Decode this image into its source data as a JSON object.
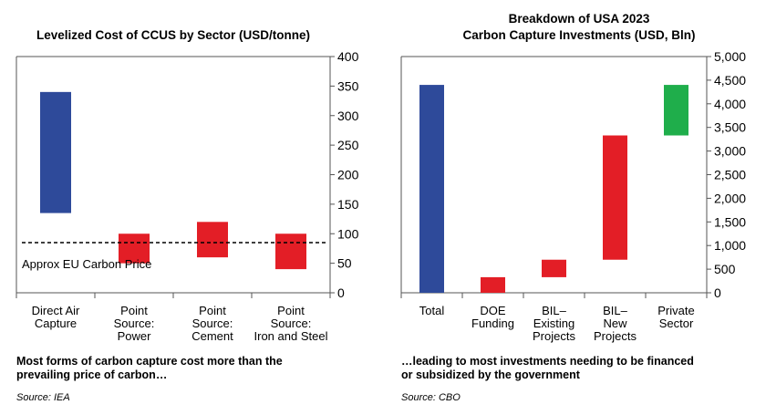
{
  "left": {
    "title": "Levelized Cost of CCUS by Sector (USD/tonne)",
    "caption_line1": "Most forms of carbon capture cost more than the",
    "caption_line2": "prevailing price of carbon…",
    "source": "Source: IEA"
  },
  "right": {
    "title_line1": "Breakdown of USA 2023",
    "title_line2": "Carbon Capture Investments (USD, Bln)",
    "caption_line1": "…leading to most investments needing to be financed",
    "caption_line2": "or subsidized by the government",
    "source": "Source: CBO"
  },
  "colors": {
    "blue": "#2e4a9a",
    "red": "#e31e26",
    "green": "#1fae4b",
    "axis": "#555555"
  },
  "chart_data": [
    {
      "type": "bar",
      "subtype": "floating-range",
      "title": "Levelized Cost of CCUS by Sector (USD/tonne)",
      "categories": [
        [
          "Direct Air",
          "Capture"
        ],
        [
          "Point",
          "Source:",
          "Power"
        ],
        [
          "Point",
          "Source:",
          "Cement"
        ],
        [
          "Point",
          "Source:",
          "Iron and Steel"
        ]
      ],
      "ranges": [
        [
          135,
          340
        ],
        [
          50,
          100
        ],
        [
          60,
          120
        ],
        [
          40,
          100
        ]
      ],
      "colors": [
        "blue",
        "red",
        "red",
        "red"
      ],
      "ylim": [
        0,
        400
      ],
      "yticks": [
        0,
        50,
        100,
        150,
        200,
        250,
        300,
        350,
        400
      ],
      "ytick_labels": [
        "0",
        "50",
        "100",
        "150",
        "200",
        "250",
        "300",
        "350",
        "400"
      ],
      "y_axis_side": "right",
      "reference_line": {
        "value": 85,
        "label": "Approx EU Carbon Price",
        "style": "dashed"
      }
    },
    {
      "type": "bar",
      "subtype": "waterfall",
      "title": "Breakdown of USA 2023 Carbon Capture Investments (USD, Bln)",
      "categories": [
        [
          "Total"
        ],
        [
          "DOE",
          "Funding"
        ],
        [
          "BIL–",
          "Existing",
          "Projects"
        ],
        [
          "BIL–",
          "New",
          "Projects"
        ],
        [
          "Private",
          "Sector"
        ]
      ],
      "ranges": [
        [
          0,
          4400
        ],
        [
          0,
          330
        ],
        [
          330,
          700
        ],
        [
          700,
          3330
        ],
        [
          3330,
          4400
        ]
      ],
      "colors": [
        "blue",
        "red",
        "red",
        "red",
        "green"
      ],
      "ylim": [
        0,
        5000
      ],
      "yticks": [
        0,
        500,
        1000,
        1500,
        2000,
        2500,
        3000,
        3500,
        4000,
        4500,
        5000
      ],
      "ytick_labels": [
        "0",
        "500",
        "1,000",
        "1,500",
        "2,000",
        "2,500",
        "3,000",
        "3,500",
        "4,000",
        "4,500",
        "5,000"
      ],
      "y_axis_side": "right"
    }
  ]
}
